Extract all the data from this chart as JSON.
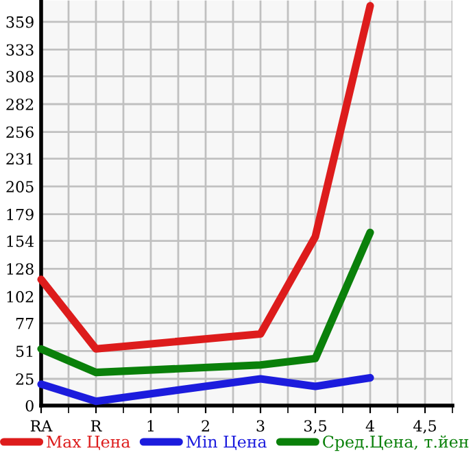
{
  "chart_data": {
    "type": "line",
    "categories": [
      "RA",
      "R",
      "1",
      "2",
      "3",
      "3,5",
      "4",
      "4,5"
    ],
    "series": [
      {
        "name": "Max Цена",
        "color": "#dd1c1c",
        "values": [
          118,
          53,
          null,
          null,
          67,
          158,
          374,
          null
        ]
      },
      {
        "name": "Min Цена",
        "color": "#1c1cdd",
        "values": [
          20,
          4,
          null,
          null,
          25,
          18,
          26,
          null
        ]
      },
      {
        "name": "Сред.Цена, т.йен",
        "color": "#0a800a",
        "values": [
          53,
          31,
          null,
          null,
          38,
          44,
          162,
          null
        ]
      }
    ],
    "ylim": [
      0,
      379
    ],
    "yticks": [
      0,
      25,
      51,
      77,
      102,
      128,
      154,
      179,
      205,
      231,
      256,
      282,
      308,
      333,
      359
    ],
    "grid": true,
    "legend": "bottom",
    "marker": "none",
    "line_style": "solid"
  }
}
